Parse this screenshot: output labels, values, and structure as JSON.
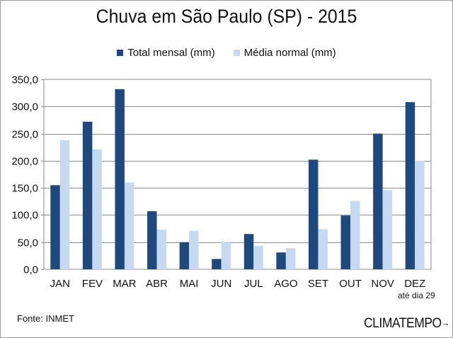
{
  "chart_data": {
    "type": "bar",
    "title": "Chuva em São Paulo (SP) - 2015",
    "categories": [
      "JAN",
      "FEV",
      "MAR",
      "ABR",
      "MAI",
      "JUN",
      "JUL",
      "AGO",
      "SET",
      "OUT",
      "NOV",
      "DEZ"
    ],
    "series": [
      {
        "name": "Total mensal (mm)",
        "color": "#1f497d",
        "values": [
          155,
          272,
          332,
          107,
          50,
          19,
          65,
          31,
          202,
          99,
          250,
          308
        ]
      },
      {
        "name": "Média normal (mm)",
        "color": "#c6d9f1",
        "values": [
          238,
          221,
          160,
          73,
          71,
          51,
          43,
          39,
          74,
          126,
          146,
          200
        ]
      }
    ],
    "ylim": [
      0,
      350
    ],
    "yticks": [
      "0,0",
      "50,0",
      "100,0",
      "150,0",
      "200,0",
      "250,0",
      "300,0",
      "350,0"
    ],
    "grid": true,
    "legend_position": "top-center",
    "annotation": "até dia 29"
  },
  "footer": {
    "source": "Fonte: INMET",
    "logo": "CLIMATEMPO"
  }
}
